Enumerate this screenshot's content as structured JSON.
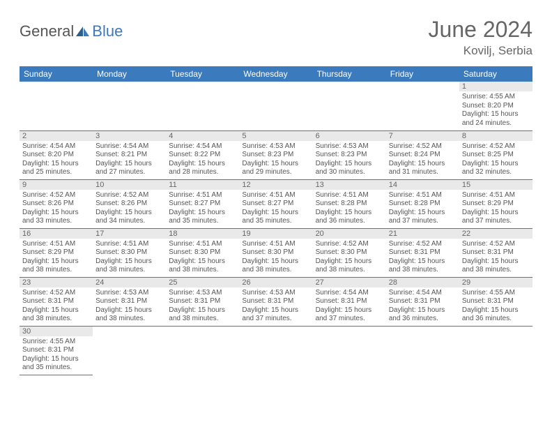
{
  "brand": {
    "left": "General",
    "right": "Blue"
  },
  "title": "June 2024",
  "location": "Kovilj, Serbia",
  "colors": {
    "header_bg": "#3a7abd",
    "header_text": "#ffffff",
    "rule": "#3a7abd",
    "daynum_bg": "#e9e9e9",
    "body_text": "#555555",
    "title_text": "#666666"
  },
  "columns": [
    "Sunday",
    "Monday",
    "Tuesday",
    "Wednesday",
    "Thursday",
    "Friday",
    "Saturday"
  ],
  "weeks": [
    [
      null,
      null,
      null,
      null,
      null,
      null,
      {
        "n": "1",
        "sr": "4:55 AM",
        "ss": "8:20 PM",
        "dl": "15 hours and 24 minutes."
      }
    ],
    [
      {
        "n": "2",
        "sr": "4:54 AM",
        "ss": "8:20 PM",
        "dl": "15 hours and 25 minutes."
      },
      {
        "n": "3",
        "sr": "4:54 AM",
        "ss": "8:21 PM",
        "dl": "15 hours and 27 minutes."
      },
      {
        "n": "4",
        "sr": "4:54 AM",
        "ss": "8:22 PM",
        "dl": "15 hours and 28 minutes."
      },
      {
        "n": "5",
        "sr": "4:53 AM",
        "ss": "8:23 PM",
        "dl": "15 hours and 29 minutes."
      },
      {
        "n": "6",
        "sr": "4:53 AM",
        "ss": "8:23 PM",
        "dl": "15 hours and 30 minutes."
      },
      {
        "n": "7",
        "sr": "4:52 AM",
        "ss": "8:24 PM",
        "dl": "15 hours and 31 minutes."
      },
      {
        "n": "8",
        "sr": "4:52 AM",
        "ss": "8:25 PM",
        "dl": "15 hours and 32 minutes."
      }
    ],
    [
      {
        "n": "9",
        "sr": "4:52 AM",
        "ss": "8:26 PM",
        "dl": "15 hours and 33 minutes."
      },
      {
        "n": "10",
        "sr": "4:52 AM",
        "ss": "8:26 PM",
        "dl": "15 hours and 34 minutes."
      },
      {
        "n": "11",
        "sr": "4:51 AM",
        "ss": "8:27 PM",
        "dl": "15 hours and 35 minutes."
      },
      {
        "n": "12",
        "sr": "4:51 AM",
        "ss": "8:27 PM",
        "dl": "15 hours and 35 minutes."
      },
      {
        "n": "13",
        "sr": "4:51 AM",
        "ss": "8:28 PM",
        "dl": "15 hours and 36 minutes."
      },
      {
        "n": "14",
        "sr": "4:51 AM",
        "ss": "8:28 PM",
        "dl": "15 hours and 37 minutes."
      },
      {
        "n": "15",
        "sr": "4:51 AM",
        "ss": "8:29 PM",
        "dl": "15 hours and 37 minutes."
      }
    ],
    [
      {
        "n": "16",
        "sr": "4:51 AM",
        "ss": "8:29 PM",
        "dl": "15 hours and 38 minutes."
      },
      {
        "n": "17",
        "sr": "4:51 AM",
        "ss": "8:30 PM",
        "dl": "15 hours and 38 minutes."
      },
      {
        "n": "18",
        "sr": "4:51 AM",
        "ss": "8:30 PM",
        "dl": "15 hours and 38 minutes."
      },
      {
        "n": "19",
        "sr": "4:51 AM",
        "ss": "8:30 PM",
        "dl": "15 hours and 38 minutes."
      },
      {
        "n": "20",
        "sr": "4:52 AM",
        "ss": "8:30 PM",
        "dl": "15 hours and 38 minutes."
      },
      {
        "n": "21",
        "sr": "4:52 AM",
        "ss": "8:31 PM",
        "dl": "15 hours and 38 minutes."
      },
      {
        "n": "22",
        "sr": "4:52 AM",
        "ss": "8:31 PM",
        "dl": "15 hours and 38 minutes."
      }
    ],
    [
      {
        "n": "23",
        "sr": "4:52 AM",
        "ss": "8:31 PM",
        "dl": "15 hours and 38 minutes."
      },
      {
        "n": "24",
        "sr": "4:53 AM",
        "ss": "8:31 PM",
        "dl": "15 hours and 38 minutes."
      },
      {
        "n": "25",
        "sr": "4:53 AM",
        "ss": "8:31 PM",
        "dl": "15 hours and 38 minutes."
      },
      {
        "n": "26",
        "sr": "4:53 AM",
        "ss": "8:31 PM",
        "dl": "15 hours and 37 minutes."
      },
      {
        "n": "27",
        "sr": "4:54 AM",
        "ss": "8:31 PM",
        "dl": "15 hours and 37 minutes."
      },
      {
        "n": "28",
        "sr": "4:54 AM",
        "ss": "8:31 PM",
        "dl": "15 hours and 36 minutes."
      },
      {
        "n": "29",
        "sr": "4:55 AM",
        "ss": "8:31 PM",
        "dl": "15 hours and 36 minutes."
      }
    ],
    [
      {
        "n": "30",
        "sr": "4:55 AM",
        "ss": "8:31 PM",
        "dl": "15 hours and 35 minutes."
      },
      null,
      null,
      null,
      null,
      null,
      null
    ]
  ],
  "labels": {
    "sunrise": "Sunrise:",
    "sunset": "Sunset:",
    "daylight": "Daylight:"
  }
}
